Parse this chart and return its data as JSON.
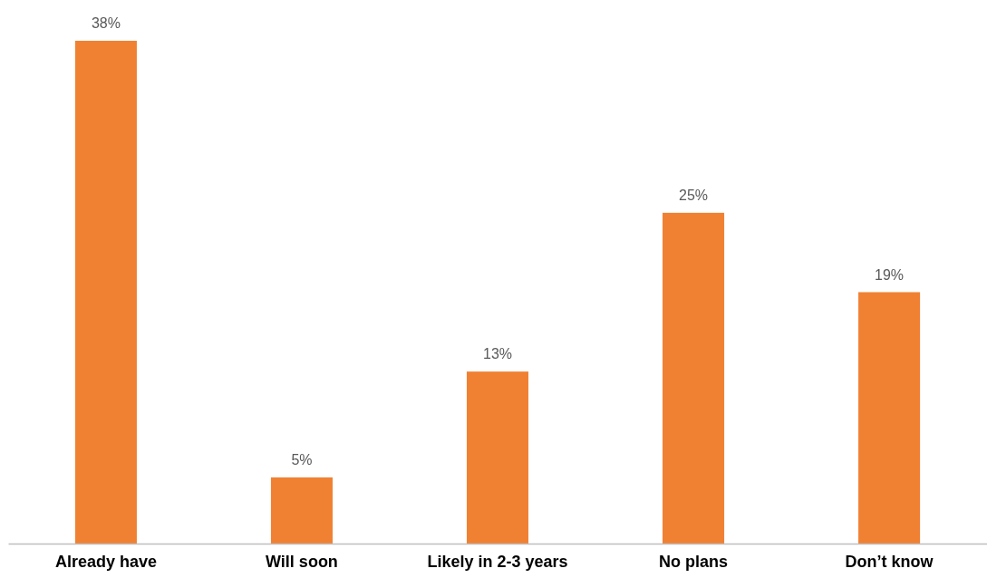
{
  "chart_data": {
    "type": "bar",
    "categories": [
      "Already have",
      "Will soon",
      "Likely in 2-3 years",
      "No plans",
      "Don’t know"
    ],
    "values": [
      38,
      5,
      13,
      25,
      19
    ],
    "value_labels": [
      "38%",
      "5%",
      "13%",
      "25%",
      "19%"
    ],
    "color": "#f08133"
  }
}
